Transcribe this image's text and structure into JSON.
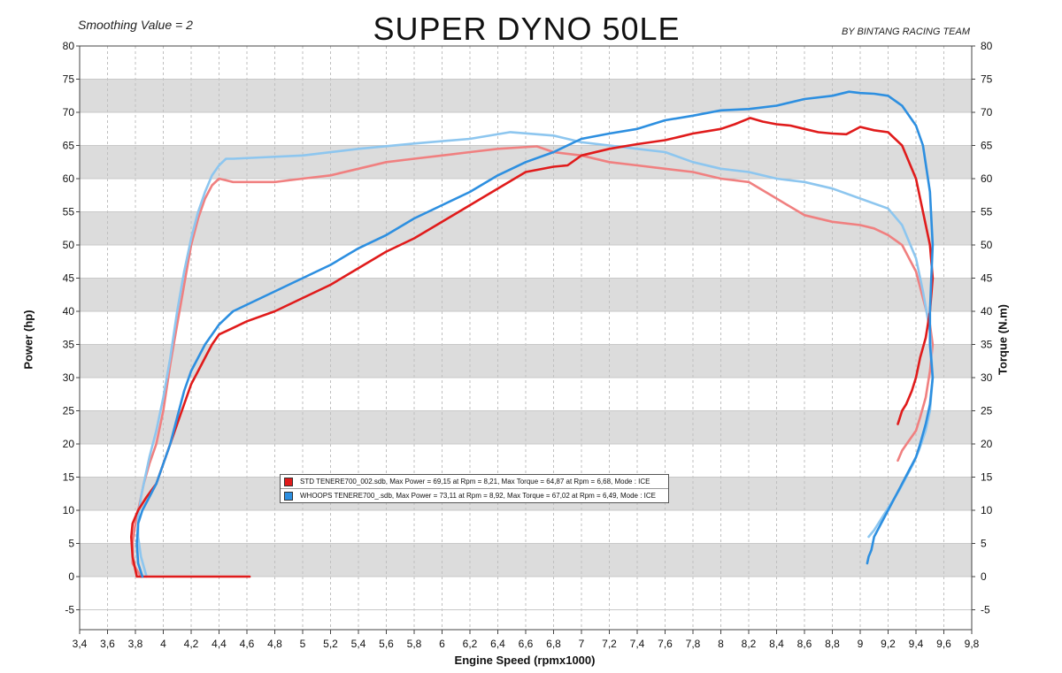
{
  "header": {
    "smoothing": "Smoothing Value = 2",
    "title": "SUPER DYNO 50LE",
    "byline": "BY BINTANG RACING TEAM"
  },
  "legend": [
    {
      "text": "STD TENERE700_002.sdb, Max Power = 69,15 at Rpm = 8,21, Max Torque = 64,87 at Rpm = 6,68, Mode : ICE",
      "color": "#e01b1b"
    },
    {
      "text": "WHOOPS TENERE700_.sdb, Max Power = 73,11 at Rpm = 8,92, Max Torque = 67,02 at Rpm = 6,49, Mode : ICE",
      "color": "#2d8fe0"
    }
  ],
  "chart_data": {
    "type": "line",
    "xlabel": "Engine Speed (rpmx1000)",
    "ylabel": "Power (hp)",
    "y2label": "Torque (N.m)",
    "xlim": [
      3.4,
      9.8
    ],
    "ylim": [
      -8,
      80
    ],
    "grid": true,
    "x_ticks": [
      "3,4",
      "3,6",
      "3,8",
      "4",
      "4,2",
      "4,4",
      "4,6",
      "4,8",
      "5",
      "5,2",
      "5,4",
      "5,6",
      "5,8",
      "6",
      "6,2",
      "6,4",
      "6,6",
      "6,8",
      "7",
      "7,2",
      "7,4",
      "7,6",
      "7,8",
      "8",
      "8,2",
      "8,4",
      "8,6",
      "8,8",
      "9",
      "9,2",
      "9,4",
      "9,6",
      "9,8"
    ],
    "y_ticks": [
      "80",
      "75",
      "70",
      "65",
      "60",
      "55",
      "50",
      "45",
      "40",
      "35",
      "30",
      "25",
      "20",
      "15",
      "10",
      "5",
      "0",
      "-5"
    ],
    "series": [
      {
        "name": "STD TENERE700_002.sdb",
        "quantity": "Power",
        "color": "#e01b1b",
        "x": [
          4.62,
          3.9,
          3.81,
          3.78,
          3.77,
          3.78,
          3.82,
          3.88,
          3.95,
          4.0,
          4.05,
          4.1,
          4.15,
          4.2,
          4.25,
          4.3,
          4.35,
          4.4,
          4.5,
          4.6,
          4.8,
          5.0,
          5.2,
          5.4,
          5.6,
          5.8,
          6.0,
          6.2,
          6.4,
          6.6,
          6.8,
          6.9,
          7.0,
          7.2,
          7.4,
          7.6,
          7.7,
          7.8,
          8.0,
          8.1,
          8.21,
          8.3,
          8.4,
          8.5,
          8.6,
          8.7,
          8.8,
          8.9,
          9.0,
          9.1,
          9.2,
          9.3,
          9.4,
          9.45,
          9.5,
          9.52,
          9.5,
          9.47,
          9.43,
          9.4,
          9.37,
          9.33,
          9.3,
          9.27
        ],
        "y": [
          0,
          0,
          0,
          3,
          6,
          8,
          10,
          12,
          14,
          17,
          20,
          23,
          26,
          29,
          31,
          33,
          35,
          36.5,
          37.5,
          38.5,
          40,
          42,
          44,
          46.5,
          49,
          51,
          53.5,
          56,
          58.5,
          61,
          61.8,
          62,
          63.5,
          64.5,
          65.2,
          65.8,
          66.3,
          66.8,
          67.5,
          68.2,
          69.15,
          68.6,
          68.2,
          68,
          67.5,
          67,
          66.8,
          66.7,
          67.8,
          67.3,
          67,
          65,
          60,
          55,
          50,
          45,
          40,
          36,
          33,
          30,
          28,
          26,
          25,
          23
        ]
      },
      {
        "name": "STD TENERE700_002.sdb",
        "quantity": "Torque",
        "color": "#f08080",
        "x": [
          3.84,
          3.78,
          3.78,
          3.8,
          3.83,
          3.86,
          3.9,
          3.95,
          4.0,
          4.05,
          4.1,
          4.15,
          4.2,
          4.25,
          4.3,
          4.35,
          4.4,
          4.5,
          4.6,
          4.8,
          5.0,
          5.2,
          5.4,
          5.6,
          5.8,
          6.0,
          6.2,
          6.4,
          6.68,
          6.8,
          7.0,
          7.2,
          7.4,
          7.6,
          7.8,
          8.0,
          8.2,
          8.4,
          8.6,
          8.8,
          9.0,
          9.1,
          9.2,
          9.3,
          9.4,
          9.45,
          9.5,
          9.52,
          9.5,
          9.47,
          9.43,
          9.4,
          9.35,
          9.3,
          9.27
        ],
        "y": [
          0,
          2,
          5,
          8,
          11,
          14,
          17,
          20,
          25,
          32,
          38,
          44,
          50,
          54,
          57,
          59,
          60,
          59.5,
          59.5,
          59.5,
          60,
          60.5,
          61.5,
          62.5,
          63,
          63.5,
          64,
          64.5,
          64.87,
          64,
          63.5,
          62.5,
          62,
          61.5,
          61,
          60,
          59.5,
          57,
          54.5,
          53.5,
          53,
          52.5,
          51.5,
          50,
          46,
          42,
          38,
          35,
          31,
          27,
          24,
          22,
          20.5,
          19,
          17.5
        ]
      },
      {
        "name": "WHOOPS TENERE700_.sdb",
        "quantity": "Power",
        "color": "#2d8fe0",
        "x": [
          3.85,
          3.82,
          3.81,
          3.82,
          3.85,
          3.9,
          3.95,
          4.0,
          4.05,
          4.1,
          4.15,
          4.2,
          4.3,
          4.4,
          4.5,
          4.6,
          4.8,
          5.0,
          5.2,
          5.4,
          5.6,
          5.8,
          6.0,
          6.2,
          6.4,
          6.6,
          6.8,
          7.0,
          7.2,
          7.4,
          7.6,
          7.8,
          8.0,
          8.2,
          8.4,
          8.6,
          8.8,
          8.92,
          9.0,
          9.1,
          9.2,
          9.3,
          9.4,
          9.45,
          9.5,
          9.52,
          9.51,
          9.5,
          9.5,
          9.52,
          9.5,
          9.47,
          9.43,
          9.4,
          9.35,
          9.3,
          9.25,
          9.2,
          9.15,
          9.1,
          9.08,
          9.06,
          9.05
        ],
        "y": [
          0,
          2,
          5,
          8,
          10,
          12,
          14,
          17,
          20,
          24,
          28,
          31,
          35,
          38,
          40,
          41,
          43,
          45,
          47,
          49.5,
          51.5,
          54,
          56,
          58,
          60.5,
          62.5,
          64,
          66,
          66.8,
          67.5,
          68.8,
          69.5,
          70.3,
          70.5,
          71,
          72,
          72.5,
          73.11,
          72.9,
          72.8,
          72.5,
          71,
          68,
          65,
          58,
          50,
          45,
          40,
          35,
          30,
          26,
          23,
          20,
          18,
          16,
          14,
          12,
          10,
          8,
          6,
          4,
          3,
          2
        ]
      },
      {
        "name": "WHOOPS TENERE700_.sdb",
        "quantity": "Torque",
        "color": "#8dc6ef",
        "x": [
          3.88,
          3.84,
          3.82,
          3.82,
          3.84,
          3.87,
          3.9,
          3.95,
          4.0,
          4.05,
          4.1,
          4.15,
          4.2,
          4.25,
          4.3,
          4.35,
          4.4,
          4.45,
          4.5,
          4.7,
          5.0,
          5.4,
          5.8,
          6.2,
          6.49,
          6.8,
          7.0,
          7.2,
          7.4,
          7.6,
          7.8,
          8.0,
          8.2,
          8.4,
          8.6,
          8.8,
          9.0,
          9.2,
          9.3,
          9.4,
          9.45,
          9.5,
          9.52,
          9.5,
          9.47,
          9.42,
          9.38,
          9.33,
          9.28,
          9.22,
          9.16,
          9.1,
          9.06
        ],
        "y": [
          0,
          3,
          6,
          9,
          12,
          15,
          18,
          22,
          27,
          33,
          40,
          46,
          51,
          55,
          58,
          60.5,
          62,
          63,
          63,
          63.2,
          63.5,
          64.5,
          65.3,
          66,
          67.02,
          66.5,
          65.5,
          65,
          64.5,
          64,
          62.5,
          61.5,
          61,
          60,
          59.5,
          58.5,
          57,
          55.5,
          53,
          48,
          43,
          37,
          30,
          25,
          22,
          19,
          17,
          15,
          13,
          11,
          9,
          7,
          6
        ]
      }
    ]
  }
}
